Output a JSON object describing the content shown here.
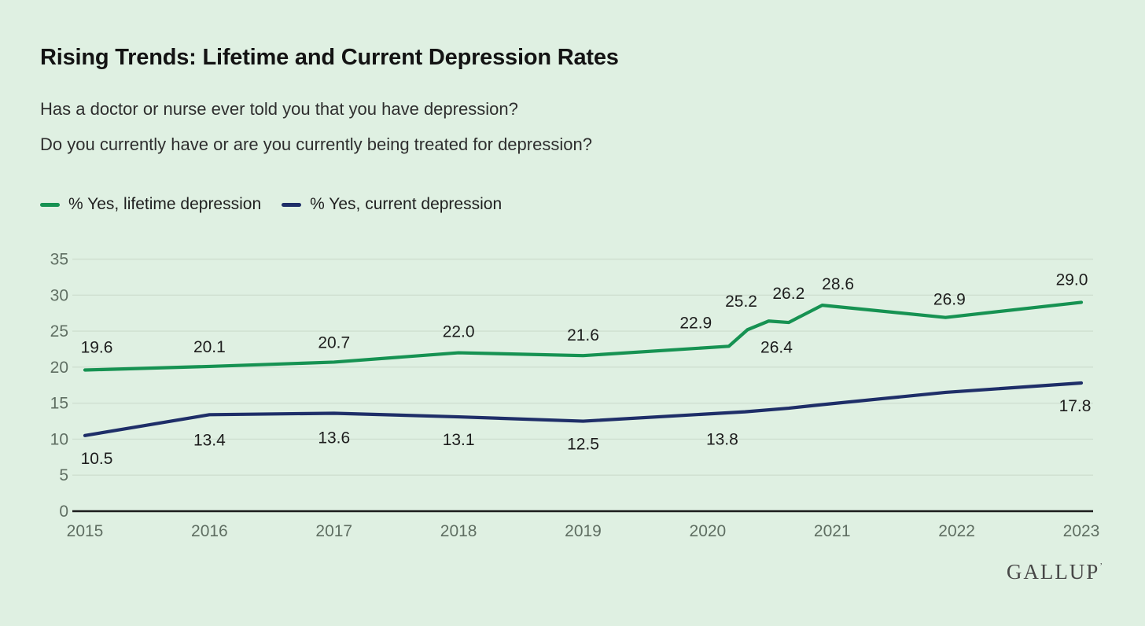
{
  "header": {
    "title": "Rising Trends: Lifetime and Current Depression Rates",
    "question_line1": "Has a doctor or nurse ever told you that you have depression?",
    "question_line2": "Do you currently have or are you currently being treated for depression?"
  },
  "legend": {
    "items": [
      {
        "label": "% Yes, lifetime depression",
        "color": "#169252"
      },
      {
        "label": "% Yes, current depression",
        "color": "#1e2e68"
      }
    ]
  },
  "chart_data": {
    "type": "line",
    "title": "Rising Trends: Lifetime and Current Depression Rates",
    "xlabel": "",
    "ylabel": "",
    "ylim": [
      0,
      35
    ],
    "grid": true,
    "legend_position": "top-left",
    "x_axis": {
      "ticks": [
        2015,
        2016,
        2017,
        2018,
        2019,
        2020,
        2021,
        2022,
        2023
      ]
    },
    "y_axis": {
      "min": 0,
      "max": 35,
      "step": 5,
      "ticks": [
        0,
        5,
        10,
        15,
        20,
        25,
        30,
        35
      ]
    },
    "style": {
      "background": "#dff0e2",
      "grid_color": "#cfdfd0",
      "axis_color": "#1d1d1d",
      "tick_color": "#5f6e62",
      "label_color": "#1d1d1d"
    },
    "series": [
      {
        "id": "lifetime-depression",
        "name": "% Yes, lifetime depression",
        "color": "#169252",
        "points": [
          {
            "x": 2015,
            "v": 19.6,
            "label": "19.6",
            "pos": "above",
            "dx": 15,
            "dy": -22
          },
          {
            "x": 2016,
            "v": 20.1,
            "label": "20.1",
            "pos": "above",
            "dx": 0,
            "dy": -18
          },
          {
            "x": 2017,
            "v": 20.7,
            "label": "20.7",
            "pos": "above",
            "dx": 0,
            "dy": -18
          },
          {
            "x": 2018,
            "v": 22.0,
            "label": "22.0",
            "pos": "above",
            "dx": 0,
            "dy": -20
          },
          {
            "x": 2019,
            "v": 21.6,
            "label": "21.6",
            "pos": "above",
            "dx": 0,
            "dy": -19
          },
          {
            "x": 2020.17,
            "v": 22.9,
            "label": "22.9",
            "pos": "above",
            "dx": -42,
            "dy": -23
          },
          {
            "x": 2020.32,
            "v": 25.2,
            "label": "25.2",
            "pos": "above",
            "dx": -8,
            "dy": -29
          },
          {
            "x": 2020.49,
            "v": 26.4,
            "label": "26.4",
            "pos": "below",
            "dx": 10,
            "dy": 40
          },
          {
            "x": 2020.65,
            "v": 26.2,
            "label": "26.2",
            "pos": "above",
            "dx": 0,
            "dy": -30
          },
          {
            "x": 2020.92,
            "v": 28.6,
            "label": "28.6",
            "pos": "above",
            "dx": 20,
            "dy": -20
          },
          {
            "x": 2021.91,
            "v": 26.9,
            "label": "26.9",
            "pos": "above",
            "dx": 5,
            "dy": -16
          },
          {
            "x": 2023,
            "v": 29.0,
            "label": "29.0",
            "pos": "above",
            "dx": -12,
            "dy": -22
          }
        ]
      },
      {
        "id": "current-depression",
        "name": "% Yes, current depression",
        "color": "#1e2e68",
        "points": [
          {
            "x": 2015,
            "v": 10.5,
            "label": "10.5",
            "pos": "below",
            "dx": 15,
            "dy": 36
          },
          {
            "x": 2016,
            "v": 13.4,
            "label": "13.4",
            "pos": "below",
            "dx": 0,
            "dy": 39
          },
          {
            "x": 2017,
            "v": 13.6,
            "label": "13.6",
            "pos": "below",
            "dx": 0,
            "dy": 38
          },
          {
            "x": 2018,
            "v": 13.1,
            "label": "13.1",
            "pos": "below",
            "dx": 0,
            "dy": 36
          },
          {
            "x": 2019,
            "v": 12.5,
            "label": "12.5",
            "pos": "below",
            "dx": 0,
            "dy": 36
          },
          {
            "x": 2020.3,
            "v": 13.8,
            "label": "13.8",
            "pos": "below",
            "dx": -29,
            "dy": 42
          },
          {
            "x": 2020.65,
            "v": 14.3,
            "label": "",
            "pos": "",
            "dx": 0,
            "dy": 0
          },
          {
            "x": 2020.92,
            "v": 14.8,
            "label": "",
            "pos": "",
            "dx": 0,
            "dy": 0
          },
          {
            "x": 2021.91,
            "v": 16.5,
            "label": "",
            "pos": "",
            "dx": 0,
            "dy": 0
          },
          {
            "x": 2023,
            "v": 17.8,
            "label": "17.8",
            "pos": "below",
            "dx": -8,
            "dy": 36
          }
        ]
      }
    ]
  },
  "footer": {
    "logo": "GALLUP",
    "logo_mark": "’"
  }
}
